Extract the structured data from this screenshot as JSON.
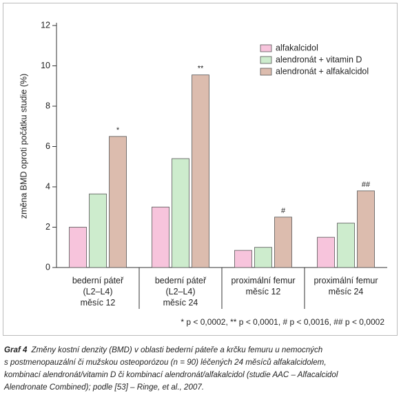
{
  "chart_data": {
    "type": "bar",
    "y_label": "změna BMD oproti počátku studie (%)",
    "categories": [
      "bederní páteř\n(L2–L4)\nměsíc 12",
      "bederní páteř\n(L2–L4)\nměsíc 24",
      "proximální femur\nměsíc 12",
      "proximální femur\nměsíc 24"
    ],
    "series": [
      {
        "name": "alfakalcidol",
        "color": "#f7c4dc",
        "values": [
          2.0,
          3.0,
          0.85,
          1.5
        ]
      },
      {
        "name": "alendronát + vitamin D",
        "color": "#cdeccd",
        "values": [
          3.65,
          5.4,
          1.0,
          2.2
        ]
      },
      {
        "name": "alendronát + alfakalcidol",
        "color": "#dcbcae",
        "values": [
          6.5,
          9.55,
          2.5,
          3.8
        ]
      }
    ],
    "annotations": [
      "*",
      "**",
      "#",
      "##"
    ],
    "footnote": "* p < 0,0002, ** p < 0,0001, # p < 0,0016, ## p < 0,0002",
    "ylim": [
      0,
      12
    ],
    "yticks": [
      0,
      2,
      4,
      6,
      8,
      10,
      12
    ],
    "legend": "upper right"
  },
  "caption": {
    "label": "Graf 4",
    "lines": [
      "Změny kostní denzity (BMD) v oblasti bederní páteře a krčku femuru u nemocných",
      "s postmenopauzální či mužskou osteoporózou (n = 90) léčených 24 měsíců alfakalcidolem,",
      "kombinací alendronát/vitamin D či kombinací alendronát/alfakalcidol (studie AAC – Alfacalcidol",
      "Alendronate Combined); podle [53] – Ringe, et al., 2007."
    ]
  }
}
